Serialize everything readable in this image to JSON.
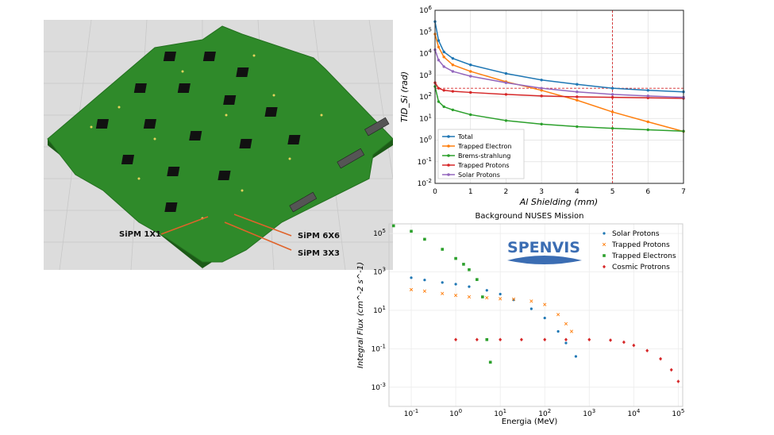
{
  "pcb_labels": {
    "sipm_1x1": "SiPM 1X1",
    "sipm_6x6": "SiPM 6X6",
    "sipm_3x3": "SiPM 3X3"
  },
  "colors": {
    "board": "#2f8a2a",
    "floor": "#dcdcdc",
    "callout": "#e0632a"
  },
  "chart_data": [
    {
      "type": "line",
      "title": "",
      "xlabel": "Al Shielding (mm)",
      "ylabel": "TID_Si (rad)",
      "xlim": [
        0,
        7
      ],
      "ylim_log10": [
        -2,
        6
      ],
      "yscale": "log",
      "grid": true,
      "legend_position": "lower-left",
      "x_ticks": [
        "0",
        "1",
        "2",
        "3",
        "4",
        "5",
        "6",
        "7"
      ],
      "y_ticks": [
        "10^-2",
        "10^-1",
        "10^0",
        "10^1",
        "10^2",
        "10^3",
        "10^4",
        "10^5",
        "10^6"
      ],
      "reference_lines": {
        "vertical_x": 5,
        "horizontal_y": 250,
        "color": "#d62728"
      },
      "x": [
        0,
        0.1,
        0.25,
        0.5,
        1,
        2,
        3,
        4,
        5,
        6,
        7
      ],
      "series": [
        {
          "name": "Total",
          "color": "#1f77b4",
          "values": [
            300000,
            40000,
            12000,
            6000,
            3000,
            1200,
            600,
            380,
            250,
            200,
            170
          ]
        },
        {
          "name": "Trapped Electron",
          "color": "#ff7f0e",
          "values": [
            80000,
            20000,
            7000,
            3000,
            1500,
            500,
            200,
            70,
            20,
            7,
            2.5
          ]
        },
        {
          "name": "Brems-strahlung",
          "color": "#2ca02c",
          "values": [
            300,
            60,
            35,
            25,
            15,
            8,
            5.5,
            4.2,
            3.5,
            3,
            2.6
          ]
        },
        {
          "name": "Trapped Protons",
          "color": "#d62728",
          "values": [
            450,
            250,
            200,
            180,
            160,
            130,
            110,
            100,
            95,
            90,
            85
          ]
        },
        {
          "name": "Solar Protons",
          "color": "#9467bd",
          "values": [
            15000,
            5000,
            2500,
            1500,
            900,
            450,
            250,
            170,
            130,
            110,
            95
          ]
        }
      ]
    },
    {
      "type": "scatter",
      "title": "Background NUSES Mission",
      "xlabel": "Energia (MeV)",
      "ylabel": "Integral Flux (cm^-2 s^-1)",
      "xscale": "log",
      "yscale": "log",
      "xlim_log10": [
        -1.5,
        5.1
      ],
      "ylim_log10": [
        -4,
        5.5
      ],
      "grid": true,
      "legend_position": "upper-right",
      "logo_text": "SPENVIS",
      "x_ticks": [
        "10^-1",
        "10^0",
        "10^1",
        "10^2",
        "10^3",
        "10^4",
        "10^5"
      ],
      "y_ticks": [
        "10^-3",
        "10^-1",
        "10^1",
        "10^3",
        "10^5"
      ],
      "series": [
        {
          "name": "Solar Protons",
          "color": "#1f77b4",
          "marker": "circle",
          "points": [
            [
              0.1,
              500
            ],
            [
              0.2,
              380
            ],
            [
              0.5,
              280
            ],
            [
              1,
              230
            ],
            [
              2,
              170
            ],
            [
              5,
              110
            ],
            [
              10,
              70
            ],
            [
              20,
              35
            ],
            [
              50,
              12
            ],
            [
              100,
              4
            ],
            [
              200,
              0.8
            ],
            [
              300,
              0.2
            ],
            [
              500,
              0.04
            ]
          ]
        },
        {
          "name": "Trapped Protons",
          "color": "#ff7f0e",
          "marker": "x",
          "points": [
            [
              0.1,
              120
            ],
            [
              0.2,
              100
            ],
            [
              0.5,
              75
            ],
            [
              1,
              60
            ],
            [
              2,
              50
            ],
            [
              5,
              45
            ],
            [
              10,
              40
            ],
            [
              20,
              38
            ],
            [
              50,
              30
            ],
            [
              100,
              20
            ],
            [
              200,
              6
            ],
            [
              300,
              2
            ],
            [
              400,
              0.8
            ]
          ]
        },
        {
          "name": "Trapped Electrons",
          "color": "#2ca02c",
          "marker": "square",
          "points": [
            [
              0.04,
              250000
            ],
            [
              0.1,
              130000
            ],
            [
              0.2,
              50000
            ],
            [
              0.5,
              15000
            ],
            [
              1,
              5000
            ],
            [
              1.5,
              2500
            ],
            [
              2,
              1300
            ],
            [
              3,
              400
            ],
            [
              4,
              50
            ],
            [
              5,
              0.3
            ],
            [
              6,
              0.02
            ]
          ]
        },
        {
          "name": "Cosmic Protrons",
          "color": "#d62728",
          "marker": "diamond",
          "points": [
            [
              1,
              0.3
            ],
            [
              3,
              0.3
            ],
            [
              10,
              0.3
            ],
            [
              30,
              0.3
            ],
            [
              100,
              0.3
            ],
            [
              300,
              0.3
            ],
            [
              1000,
              0.3
            ],
            [
              3000,
              0.28
            ],
            [
              6000,
              0.22
            ],
            [
              10000,
              0.15
            ],
            [
              20000,
              0.08
            ],
            [
              40000,
              0.03
            ],
            [
              70000,
              0.008
            ],
            [
              100000,
              0.002
            ]
          ]
        }
      ]
    }
  ]
}
